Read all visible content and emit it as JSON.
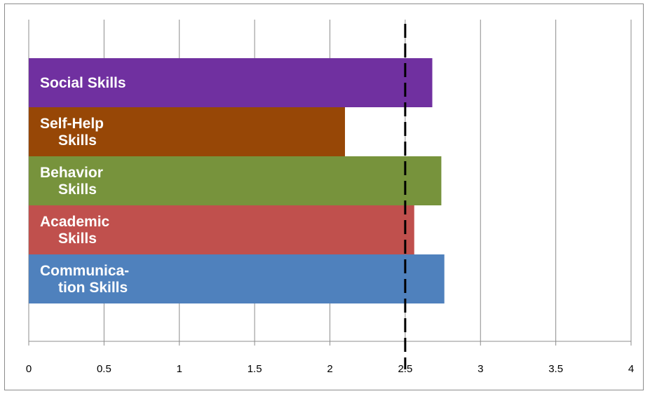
{
  "chart_data": {
    "type": "bar",
    "orientation": "horizontal",
    "categories": [
      {
        "lines": [
          "Social Skills"
        ],
        "indent": [
          0
        ]
      },
      {
        "lines": [
          "Self-Help",
          "Skills"
        ],
        "indent": [
          0,
          1
        ]
      },
      {
        "lines": [
          "Behavior",
          "Skills"
        ],
        "indent": [
          0,
          1
        ]
      },
      {
        "lines": [
          "Academic",
          "Skills"
        ],
        "indent": [
          0,
          1
        ]
      },
      {
        "lines": [
          "Communica-",
          "tion Skills"
        ],
        "indent": [
          0,
          1
        ]
      }
    ],
    "values": [
      2.68,
      2.1,
      2.74,
      2.56,
      2.76
    ],
    "colors": [
      "#7030a0",
      "#974706",
      "#77933c",
      "#c0504d",
      "#4f81bd"
    ],
    "xlim": [
      0,
      4
    ],
    "xticks": [
      "0",
      "0.5",
      "1",
      "1.5",
      "2",
      "2.5",
      "3",
      "3.5",
      "4"
    ],
    "reference_line": {
      "value": 2.5,
      "style": "dashed",
      "color": "#000000"
    },
    "grid": "vertical",
    "title": "",
    "xlabel": "",
    "ylabel": ""
  }
}
